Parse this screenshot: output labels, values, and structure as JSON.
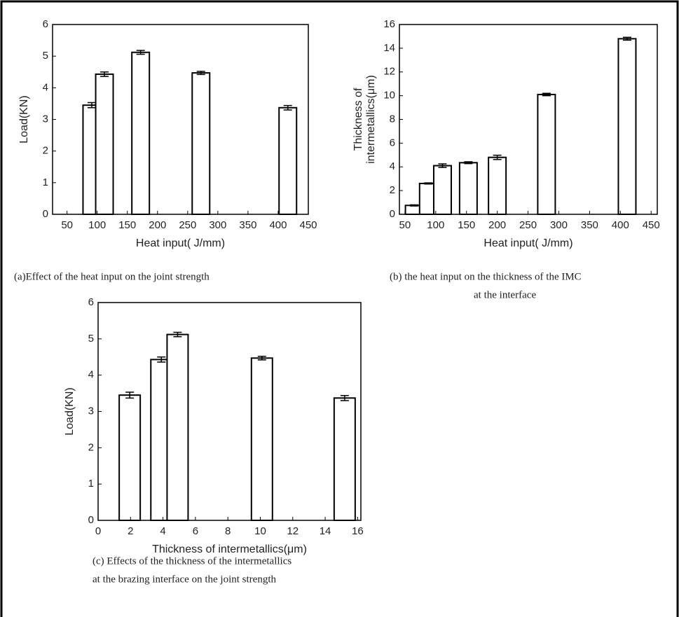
{
  "chart_data": [
    {
      "type": "bar",
      "xlabel": "Heat input( J/mm)",
      "ylabel": [
        "Load(KN)"
      ],
      "x": [
        91,
        112,
        172,
        272,
        416
      ],
      "values": [
        3.45,
        4.43,
        5.12,
        4.47,
        3.37
      ],
      "errors": [
        0.08,
        0.07,
        0.06,
        0.05,
        0.07
      ],
      "xlim": [
        26,
        450
      ],
      "ylim": [
        0,
        6
      ],
      "xticks": [
        50,
        100,
        150,
        200,
        250,
        300,
        350,
        400,
        450
      ],
      "yticks": [
        0,
        1,
        2,
        3,
        4,
        5,
        6
      ],
      "caption": [
        "(a)Effect of the heat input on the joint strength"
      ]
    },
    {
      "type": "bar",
      "xlabel": "Heat input( J/mm)",
      "ylabel": [
        "Thickness of",
        "intermetallics(μm)"
      ],
      "x": [
        65,
        88,
        111,
        153,
        200,
        280,
        411
      ],
      "values": [
        0.75,
        2.6,
        4.1,
        4.35,
        4.8,
        10.1,
        14.8
      ],
      "errors": [
        0.05,
        0.05,
        0.15,
        0.08,
        0.18,
        0.1,
        0.12
      ],
      "xlim": [
        41,
        460
      ],
      "ylim": [
        0,
        16
      ],
      "xticks": [
        50,
        100,
        150,
        200,
        250,
        300,
        350,
        400,
        450
      ],
      "yticks": [
        0,
        2,
        4,
        6,
        8,
        10,
        12,
        14,
        16
      ],
      "caption": [
        "(b) the heat input on the thickness of the IMC",
        "at the interface"
      ]
    },
    {
      "type": "bar",
      "xlabel": "Thickness of  intermetallics(μm)",
      "ylabel": [
        "Load(KN)"
      ],
      "x": [
        1.95,
        3.9,
        4.9,
        10.1,
        15.2
      ],
      "values": [
        3.45,
        4.43,
        5.12,
        4.47,
        3.37
      ],
      "errors": [
        0.08,
        0.07,
        0.06,
        0.05,
        0.07
      ],
      "xlim": [
        0,
        16.2
      ],
      "ylim": [
        0,
        6
      ],
      "xticks": [
        0,
        2,
        4,
        6,
        8,
        10,
        12,
        14,
        16
      ],
      "yticks": [
        0,
        1,
        2,
        3,
        4,
        5,
        6
      ],
      "caption": [
        "(c) Effects of the thickness of the intermetallics",
        "at the brazing interface on the joint strength"
      ]
    }
  ]
}
